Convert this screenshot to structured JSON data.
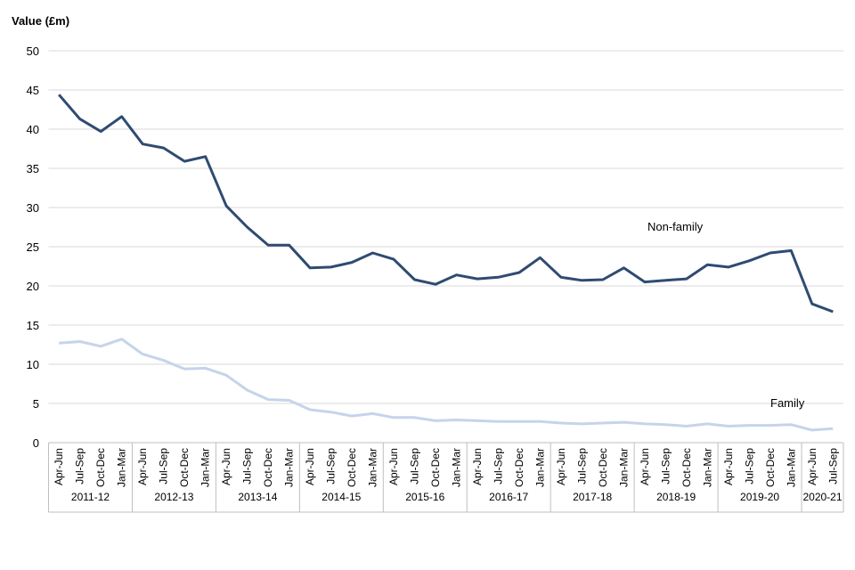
{
  "chart_data": {
    "type": "line",
    "title": "",
    "ylabel": "Value (£m)",
    "xlabel": "",
    "ylim": [
      0,
      50
    ],
    "yticks": [
      0,
      5,
      10,
      15,
      20,
      25,
      30,
      35,
      40,
      45,
      50
    ],
    "grid": true,
    "quarters": [
      "Apr-Jun",
      "Jul-Sep",
      "Oct-Dec",
      "Jan-Mar"
    ],
    "years": [
      "2011-12",
      "2012-13",
      "2013-14",
      "2014-15",
      "2015-16",
      "2016-17",
      "2017-18",
      "2018-19",
      "2019-20",
      "2020-21"
    ],
    "x": [
      "Apr-Jun",
      "Jul-Sep",
      "Oct-Dec",
      "Jan-Mar",
      "Apr-Jun",
      "Jul-Sep",
      "Oct-Dec",
      "Jan-Mar",
      "Apr-Jun",
      "Jul-Sep",
      "Oct-Dec",
      "Jan-Mar",
      "Apr-Jun",
      "Jul-Sep",
      "Oct-Dec",
      "Jan-Mar",
      "Apr-Jun",
      "Jul-Sep",
      "Oct-Dec",
      "Jan-Mar",
      "Apr-Jun",
      "Jul-Sep",
      "Oct-Dec",
      "Jan-Mar",
      "Apr-Jun",
      "Jul-Sep",
      "Oct-Dec",
      "Jan-Mar",
      "Apr-Jun",
      "Jul-Sep",
      "Oct-Dec",
      "Jan-Mar",
      "Apr-Jun",
      "Jul-Sep",
      "Oct-Dec",
      "Jan-Mar",
      "Apr-Jun",
      "Jul-Sep"
    ],
    "series": [
      {
        "name": "Non-family",
        "color": "#2f4b72",
        "values": [
          44.4,
          41.3,
          39.7,
          41.6,
          38.1,
          37.6,
          35.9,
          36.5,
          30.2,
          27.5,
          25.2,
          25.2,
          22.3,
          22.4,
          23.0,
          24.2,
          23.4,
          20.8,
          20.2,
          21.4,
          20.9,
          21.1,
          21.7,
          23.6,
          21.1,
          20.7,
          20.8,
          22.3,
          20.5,
          20.7,
          20.9,
          22.7,
          22.4,
          23.2,
          24.2,
          24.5,
          17.7,
          16.7
        ]
      },
      {
        "name": "Family",
        "color": "#c6d4ea",
        "values": [
          12.7,
          12.9,
          12.3,
          13.2,
          11.3,
          10.5,
          9.4,
          9.5,
          8.6,
          6.7,
          5.5,
          5.4,
          4.2,
          3.9,
          3.4,
          3.7,
          3.2,
          3.2,
          2.8,
          2.9,
          2.8,
          2.7,
          2.7,
          2.7,
          2.5,
          2.4,
          2.5,
          2.6,
          2.4,
          2.3,
          2.1,
          2.4,
          2.1,
          2.2,
          2.2,
          2.3,
          1.6,
          1.8
        ]
      }
    ],
    "legend": "inline labels near line ends"
  }
}
